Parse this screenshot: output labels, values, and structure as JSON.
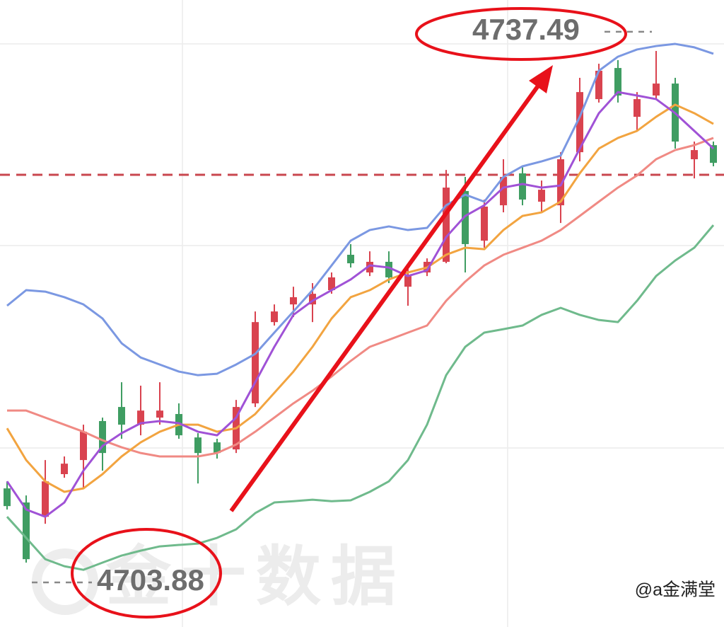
{
  "chart_data": {
    "type": "candlestick",
    "up_color": "#d9434f",
    "down_color": "#3f9d62",
    "open": [
      4709.62,
      4708.76,
      4707.89,
      4710.49,
      4711.35,
      4713.73,
      4714.59,
      4713.51,
      4713.94,
      4714.16,
      4712.73,
      4712.43,
      4712.0,
      4714.81,
      4719.77,
      4720.85,
      4720.85,
      4721.72,
      4723.88,
      4722.8,
      4723.45,
      4721.93,
      4722.8,
      4723.45,
      4727.77,
      4724.74,
      4726.9,
      4728.85,
      4727.12,
      4726.9,
      4730.14,
      4733.38,
      4735.28,
      4732.3,
      4733.6,
      4734.33,
      4729.71,
      4730.57
    ],
    "close": [
      4708.54,
      4705.3,
      4710.05,
      4711.13,
      4713.08,
      4711.78,
      4713.51,
      4714.37,
      4714.37,
      4712.86,
      4711.78,
      4711.78,
      4714.59,
      4719.77,
      4720.42,
      4721.29,
      4721.5,
      4722.5,
      4723.36,
      4723.45,
      4722.5,
      4722.58,
      4723.45,
      4727.98,
      4724.53,
      4726.82,
      4728.63,
      4727.25,
      4727.85,
      4729.71,
      4733.81,
      4735.11,
      4733.6,
      4733.38,
      4734.33,
      4730.79,
      4730.27,
      4729.49
    ],
    "high": [
      4710.05,
      4709.19,
      4711.35,
      4711.57,
      4713.51,
      4713.94,
      4716.1,
      4715.89,
      4716.1,
      4714.81,
      4712.99,
      4712.65,
      4715.02,
      4720.42,
      4720.85,
      4721.93,
      4722.15,
      4722.8,
      4724.53,
      4724.09,
      4724.09,
      4723.01,
      4723.66,
      4729.06,
      4728.63,
      4727.25,
      4729.71,
      4729.23,
      4728.41,
      4730.14,
      4734.68,
      4735.54,
      4735.76,
      4733.81,
      4736.32,
      4734.68,
      4730.79,
      4730.79
    ],
    "low": [
      4708.33,
      4705.09,
      4707.46,
      4710.27,
      4709.62,
      4710.7,
      4712.65,
      4712.86,
      4713.51,
      4712.65,
      4709.92,
      4711.44,
      4711.78,
      4714.59,
      4719.56,
      4720.08,
      4719.77,
      4721.5,
      4723.1,
      4722.58,
      4722.15,
      4720.77,
      4722.58,
      4723.36,
      4722.8,
      4724.31,
      4726.47,
      4726.9,
      4726.47,
      4725.82,
      4729.58,
      4733.17,
      4733.17,
      4731.44,
      4733.38,
      4730.36,
      4728.54,
      4729.28
    ],
    "lines": [
      {
        "color": "#7b98e2",
        "values": [
          4720.77,
          4721.72,
          4721.63,
          4721.29,
          4720.85,
          4719.99,
          4718.48,
          4717.61,
          4717.18,
          4716.75,
          4716.53,
          4716.62,
          4717.18,
          4717.83,
          4719.13,
          4720.42,
          4721.72,
          4723.23,
          4724.74,
          4725.39,
          4725.61,
          4725.39,
          4725.52,
          4726.9,
          4727.55,
          4727.12,
          4728.63,
          4729.28,
          4729.58,
          4729.93,
          4732.3,
          4735.11,
          4735.97,
          4736.41,
          4736.62,
          4736.75,
          4736.54,
          4736.15
        ]
      },
      {
        "color": "#6fba8c",
        "values": [
          4707.89,
          4706.6,
          4705.3,
          4704.87,
          4704.65,
          4705.09,
          4705.52,
          4705.82,
          4706.08,
          4706.17,
          4706.25,
          4706.6,
          4707.12,
          4708.11,
          4708.76,
          4708.84,
          4708.93,
          4708.84,
          4708.89,
          4709.41,
          4710.05,
          4711.35,
          4713.51,
          4716.53,
          4718.26,
          4719.13,
          4719.34,
          4719.56,
          4720.21,
          4720.64,
          4720.21,
          4719.9,
          4719.77,
          4721.07,
          4722.58,
          4723.53,
          4724.31,
          4725.69
        ]
      },
      {
        "color": "#f08a84",
        "values": [
          4714.37,
          4714.37,
          4713.94,
          4713.51,
          4713.08,
          4712.56,
          4712.13,
          4711.78,
          4711.57,
          4711.57,
          4711.57,
          4711.78,
          4712.3,
          4713.08,
          4713.94,
          4714.81,
          4715.58,
          4716.45,
          4717.4,
          4718.26,
          4718.69,
          4719.13,
          4719.56,
          4721.07,
          4722.24,
          4723.23,
          4723.88,
          4724.31,
          4724.74,
          4725.39,
          4726.25,
          4727.12,
          4727.98,
          4728.72,
          4729.71,
          4730.27,
          4730.57,
          4731.01
        ]
      },
      {
        "color": "#f2a440",
        "values": [
          4713.29,
          4711.35,
          4710.05,
          4709.41,
          4709.62,
          4710.49,
          4711.57,
          4712.43,
          4713.08,
          4713.51,
          4713.51,
          4713.08,
          4713.29,
          4714.16,
          4715.45,
          4716.75,
          4718.26,
          4719.99,
          4721.29,
          4721.72,
          4722.37,
          4722.8,
          4723.1,
          4723.88,
          4724.31,
          4724.22,
          4725.39,
          4726.25,
          4726.47,
          4727.12,
          4728.85,
          4730.36,
          4731.01,
          4731.44,
          4732.3,
          4733.04,
          4732.52,
          4731.87
        ]
      },
      {
        "color": "#a052d6",
        "values": [
          4710.05,
          4708.33,
          4707.89,
          4708.76,
          4710.7,
          4712.21,
          4712.99,
          4713.6,
          4713.73,
          4713.6,
          4713.08,
          4712.86,
          4713.94,
          4716.1,
          4718.26,
          4720.21,
          4721.07,
          4721.72,
          4722.37,
          4723.23,
          4723.1,
          4722.58,
          4722.93,
          4724.96,
          4726.25,
          4726.9,
          4727.98,
          4728.2,
          4727.98,
          4728.11,
          4730.36,
          4732.52,
          4733.81,
          4733.6,
          4733.38,
          4732.52,
          4731.44,
          4730.36
        ]
      }
    ],
    "ylim": [
      4701.16,
      4739.43
    ],
    "reference_line": {
      "value": 4728.76,
      "color": "#c9474f"
    },
    "high_mark": 4737.49,
    "low_mark": 4703.88,
    "grid": true
  },
  "watermark": "金十数据",
  "credit": "@a金满堂"
}
